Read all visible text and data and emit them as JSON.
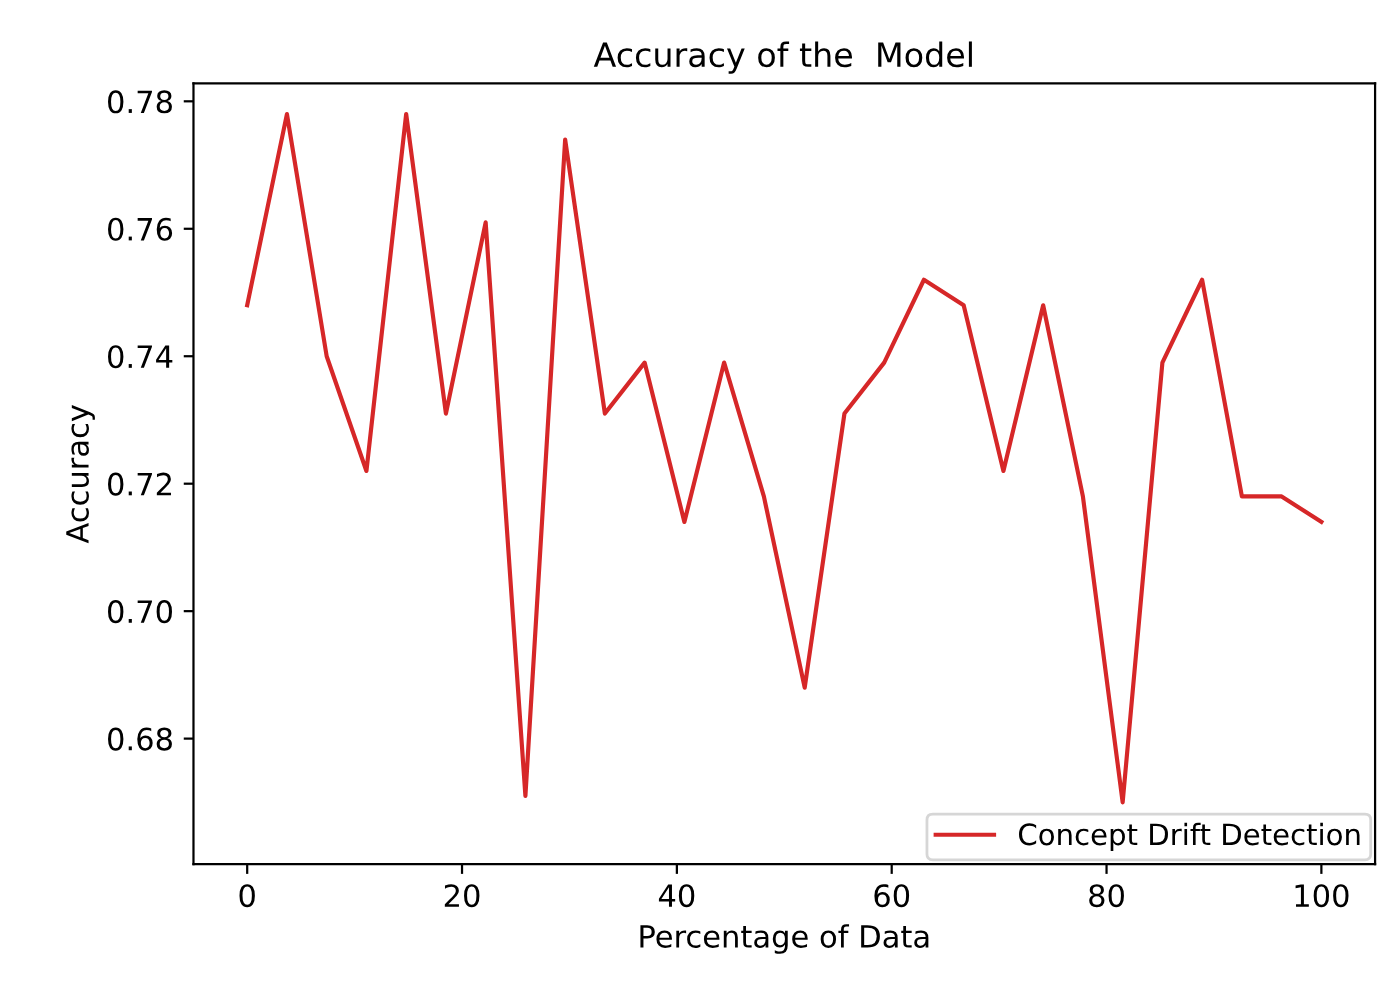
{
  "chart_data": {
    "type": "line",
    "title": "Accuracy of the  Model",
    "xlabel": "Percentage of Data",
    "ylabel": "Accuracy",
    "x": [
      0,
      3.7,
      7.4,
      11.1,
      14.8,
      18.5,
      22.2,
      25.9,
      29.6,
      33.3,
      37.0,
      40.7,
      44.4,
      48.1,
      51.9,
      55.6,
      59.3,
      63.0,
      66.7,
      70.4,
      74.1,
      77.8,
      81.5,
      85.2,
      88.9,
      92.6,
      96.3,
      100
    ],
    "series": [
      {
        "name": "Concept Drift Detection",
        "color": "#d62728",
        "values": [
          0.748,
          0.778,
          0.74,
          0.722,
          0.778,
          0.731,
          0.761,
          0.671,
          0.774,
          0.731,
          0.739,
          0.714,
          0.739,
          0.718,
          0.688,
          0.731,
          0.739,
          0.752,
          0.748,
          0.722,
          0.748,
          0.718,
          0.67,
          0.739,
          0.752,
          0.718,
          0.718,
          0.714
        ]
      }
    ],
    "xlim": [
      -5,
      105
    ],
    "ylim": [
      0.6603,
      0.7828
    ],
    "xticks": [
      0,
      20,
      40,
      60,
      80,
      100
    ],
    "yticks": [
      {
        "value": 0.68,
        "label": "0.68"
      },
      {
        "value": 0.7,
        "label": "0.70"
      },
      {
        "value": 0.72,
        "label": "0.72"
      },
      {
        "value": 0.74,
        "label": "0.74"
      },
      {
        "value": 0.76,
        "label": "0.76"
      },
      {
        "value": 0.78,
        "label": "0.78"
      }
    ],
    "legend": "bottom right",
    "grid": false
  }
}
